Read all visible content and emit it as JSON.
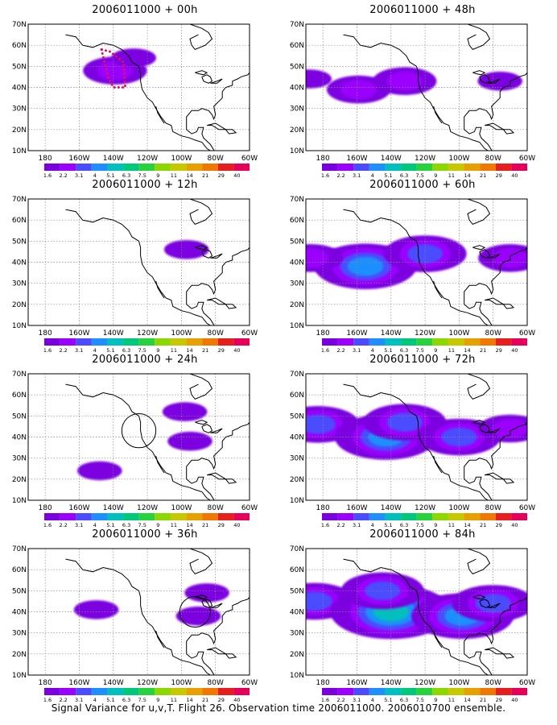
{
  "figure": {
    "footer": "Signal Variance for u,v,T. Flight 26. Observation time 2006011000. 2006010700 ensemble."
  },
  "axes": {
    "x_ticks": [
      "180",
      "160W",
      "140W",
      "120W",
      "100W",
      "80W",
      "60W"
    ],
    "y_ticks": [
      "70N",
      "60N",
      "50N",
      "40N",
      "30N",
      "20N",
      "10N"
    ]
  },
  "colorbar": {
    "labels": [
      "1.6",
      "2.2",
      "3.1",
      "4",
      "5.1",
      "6.3",
      "7.5",
      "9",
      "11",
      "14",
      "21",
      "29",
      "40"
    ],
    "colors": [
      "#7b00e0",
      "#9b00ff",
      "#4b4bff",
      "#1f8fff",
      "#00bfbf",
      "#00c87a",
      "#28d23c",
      "#8cd700",
      "#c8c800",
      "#e6a000",
      "#f07800",
      "#e61e1e",
      "#e6005a"
    ]
  },
  "panels": [
    {
      "title": "2006011000 + 00h",
      "circle": null
    },
    {
      "title": "2006011000 + 12h",
      "circle": null
    },
    {
      "title": "2006011000 + 24h",
      "circle": {
        "lon": -125,
        "lat": 43,
        "r_deg": 10
      }
    },
    {
      "title": "2006011000 + 36h",
      "circle": {
        "lon": -92,
        "lat": 40,
        "r_deg": 9
      }
    },
    {
      "title": "2006011000 + 48h",
      "circle": null
    },
    {
      "title": "2006011000 + 60h",
      "circle": null
    },
    {
      "title": "2006011000 + 72h",
      "circle": null
    },
    {
      "title": "2006011000 + 84h",
      "circle": null
    }
  ],
  "chart_data": {
    "type": "heatmap",
    "extent": {
      "lon": [
        -190,
        -60
      ],
      "lat": [
        10,
        70
      ]
    },
    "grid": true,
    "legend": "bottom",
    "panels": [
      {
        "lead_hours": 0,
        "blobs": [
          {
            "lon": -139,
            "lat": 48,
            "level": 1
          },
          {
            "lon": -128,
            "lat": 54,
            "level": 0
          }
        ],
        "flight_track": [
          [
            -147,
            58
          ],
          [
            -143,
            45
          ],
          [
            -140,
            40
          ],
          [
            -133,
            40
          ],
          [
            -134,
            52
          ],
          [
            -142,
            57
          ]
        ]
      },
      {
        "lead_hours": 12,
        "blobs": [
          {
            "lon": -97,
            "lat": 46,
            "level": 0
          }
        ]
      },
      {
        "lead_hours": 24,
        "blobs": [
          {
            "lon": -98,
            "lat": 52,
            "level": 0
          },
          {
            "lon": -95,
            "lat": 38,
            "level": 0
          },
          {
            "lon": -148,
            "lat": 24,
            "level": 0
          }
        ]
      },
      {
        "lead_hours": 36,
        "blobs": [
          {
            "lon": -150,
            "lat": 41,
            "level": 0
          },
          {
            "lon": -90,
            "lat": 38,
            "level": 0
          },
          {
            "lon": -85,
            "lat": 49,
            "level": 0
          }
        ]
      },
      {
        "lead_hours": 48,
        "blobs": [
          {
            "lon": -159,
            "lat": 39,
            "level": 1
          },
          {
            "lon": -132,
            "lat": 43,
            "level": 1
          },
          {
            "lon": -188,
            "lat": 44,
            "level": 0
          },
          {
            "lon": -76,
            "lat": 43,
            "level": 0
          }
        ]
      },
      {
        "lead_hours": 60,
        "blobs": [
          {
            "lon": -155,
            "lat": 38,
            "level": 3
          },
          {
            "lon": -120,
            "lat": 44,
            "level": 2
          },
          {
            "lon": -187,
            "lat": 42,
            "level": 1
          },
          {
            "lon": -70,
            "lat": 42,
            "level": 1
          }
        ]
      },
      {
        "lead_hours": 72,
        "blobs": [
          {
            "lon": -183,
            "lat": 46,
            "level": 2
          },
          {
            "lon": -143,
            "lat": 40,
            "level": 3
          },
          {
            "lon": -132,
            "lat": 47,
            "level": 2
          },
          {
            "lon": -100,
            "lat": 40,
            "level": 2
          },
          {
            "lon": -70,
            "lat": 44,
            "level": 1
          }
        ]
      },
      {
        "lead_hours": 84,
        "blobs": [
          {
            "lon": -185,
            "lat": 45,
            "level": 2
          },
          {
            "lon": -140,
            "lat": 40,
            "level": 4
          },
          {
            "lon": -98,
            "lat": 38,
            "level": 3
          },
          {
            "lon": -80,
            "lat": 44,
            "level": 2
          },
          {
            "lon": -145,
            "lat": 50,
            "level": 2
          }
        ]
      }
    ]
  }
}
